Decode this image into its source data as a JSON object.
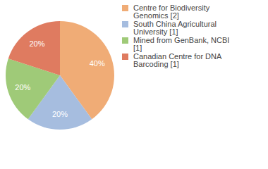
{
  "chart_data": {
    "type": "pie",
    "categories": [
      "Centre for Biodiversity Genomics [2]",
      "South China Agricultural University [1]",
      "Mined from GenBank, NCBI [1]",
      "Canadian Centre for DNA Barcoding [1]"
    ],
    "values": [
      40,
      20,
      20,
      20
    ],
    "value_labels": [
      "40%",
      "20%",
      "20%",
      "20%"
    ],
    "colors": [
      "#f0ac76",
      "#a6bddf",
      "#9fca78",
      "#df7b60"
    ],
    "data_labels": true,
    "legend": "right"
  }
}
